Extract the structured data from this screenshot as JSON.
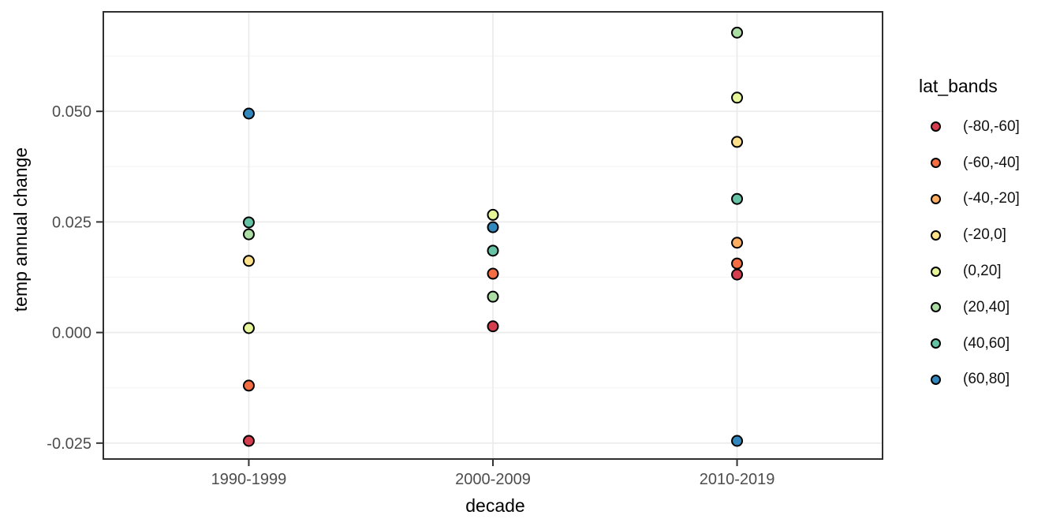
{
  "chart_data": {
    "type": "scatter",
    "title": "",
    "xlabel": "decade",
    "ylabel": "temp annual change",
    "categories": [
      "1990-1999",
      "2000-2009",
      "2010-2019"
    ],
    "y_tick_labels": [
      "0.050",
      "0.025",
      "0.000",
      "-0.025"
    ],
    "y_tick_values": [
      0.05,
      0.025,
      0.0,
      -0.025
    ],
    "y_minor_values": [
      0.0625,
      0.0375,
      0.0125,
      -0.0125
    ],
    "ylim": [
      -0.0286,
      0.0725
    ],
    "grid": true,
    "legend_position": "right",
    "legend_title": "lat_bands",
    "series": [
      {
        "name": "(-80,-60]",
        "color": "#D53E4F",
        "values": [
          -0.0245,
          0.0014,
          0.0131
        ]
      },
      {
        "name": "(-60,-40]",
        "color": "#F46D43",
        "values": [
          -0.012,
          0.0133,
          0.0156
        ]
      },
      {
        "name": "(-40,-20]",
        "color": "#FDAE61",
        "values": [
          null,
          null,
          0.0203
        ]
      },
      {
        "name": "(-20,0]",
        "color": "#FEE08B",
        "values": [
          0.0162,
          null,
          0.0431
        ]
      },
      {
        "name": "(0,20]",
        "color": "#E6F598",
        "values": [
          0.001,
          0.0266,
          0.0531
        ]
      },
      {
        "name": "(20,40]",
        "color": "#ABDDA4",
        "values": [
          0.0222,
          0.0081,
          0.0678
        ]
      },
      {
        "name": "(40,60]",
        "color": "#66C2A5",
        "values": [
          0.0249,
          0.0185,
          0.0302
        ]
      },
      {
        "name": "(60,80]",
        "color": "#3288BD",
        "values": [
          0.0495,
          0.0238,
          -0.0245
        ]
      }
    ]
  },
  "colors": {
    "background": "#FFFFFF",
    "panel_background": "#FFFFFF",
    "grid_major": "#EBEBEB",
    "grid_minor": "#F4F4F4",
    "panel_border": "#2F2F2F",
    "tick_mark": "#333333",
    "tick_label": "#4D4D4D",
    "axis_title": "#000000",
    "point_stroke": "#000000"
  }
}
